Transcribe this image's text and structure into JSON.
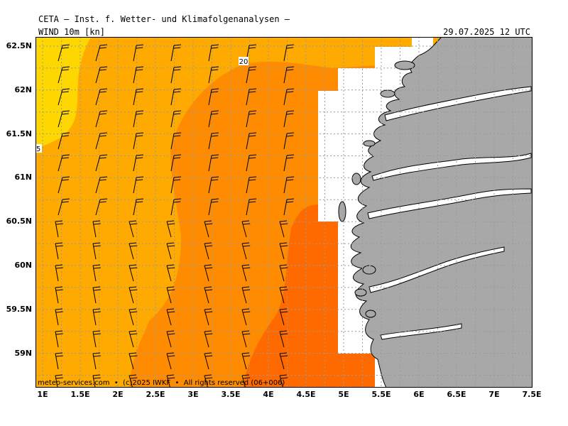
{
  "header": {
    "title": "CETA — Inst. f. Wetter- und Klimafolgenanalysen —",
    "parameter": "WIND 10m [kn]",
    "valid_time": "29.07.2025 12 UTC"
  },
  "map": {
    "lon_labels": [
      "1E",
      "1.5E",
      "2E",
      "2.5E",
      "3E",
      "3.5E",
      "4E",
      "4.5E",
      "5E",
      "5.5E",
      "6E",
      "6.5E",
      "7E",
      "7.5E"
    ],
    "lat_labels": [
      "62.5N",
      "62N",
      "61.5N",
      "61N",
      "60.5N",
      "60N",
      "59.5N",
      "59N"
    ],
    "contour_labels": [
      "20",
      "5"
    ],
    "colors": {
      "speed_5_10": "#ffd700",
      "speed_10_15": "#ffaa00",
      "speed_15_20": "#ff8c00",
      "speed_20_25": "#ff6a00",
      "land": "#a8a8a8",
      "no_data": "#ffffff",
      "grid": "#9a9a9a"
    },
    "wind_direction": "southerly veering south-southwesterly",
    "copyright": "meteo-services.com  •  (c)2025 IWKF  •  All rights reserved (06+006)"
  }
}
